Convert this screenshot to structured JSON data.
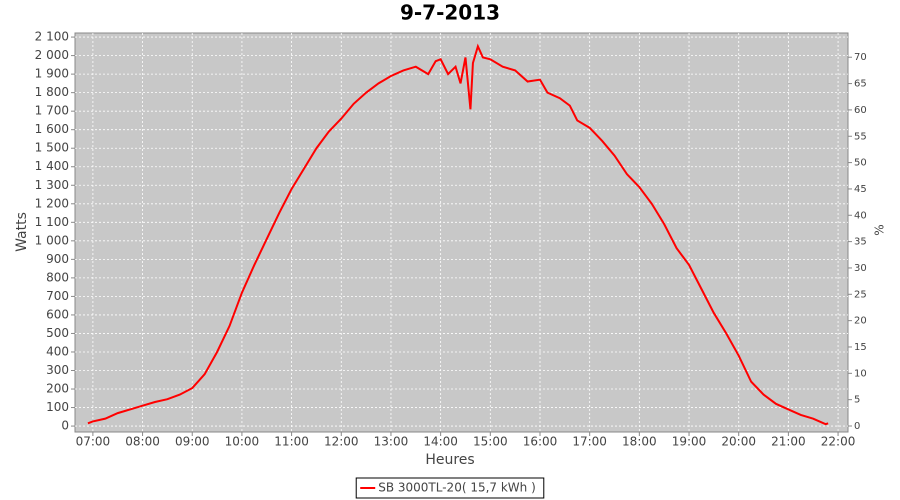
{
  "chart_data": {
    "type": "line",
    "title": "9-7-2013",
    "x_label": "Heures",
    "y_label": "Watts",
    "y2_label": "%",
    "x": [
      6.9,
      7.0,
      7.25,
      7.5,
      7.75,
      8.0,
      8.25,
      8.5,
      8.75,
      9.0,
      9.25,
      9.5,
      9.75,
      10.0,
      10.25,
      10.5,
      10.75,
      11.0,
      11.25,
      11.5,
      11.75,
      12.0,
      12.25,
      12.5,
      12.75,
      13.0,
      13.25,
      13.5,
      13.75,
      13.9,
      14.0,
      14.15,
      14.3,
      14.4,
      14.5,
      14.6,
      14.65,
      14.75,
      14.85,
      15.0,
      15.25,
      15.5,
      15.75,
      16.0,
      16.15,
      16.4,
      16.6,
      16.75,
      17.0,
      17.25,
      17.5,
      17.75,
      18.0,
      18.25,
      18.5,
      18.75,
      19.0,
      19.25,
      19.5,
      19.75,
      20.0,
      20.25,
      20.5,
      20.75,
      21.0,
      21.25,
      21.5,
      21.75,
      21.8
    ],
    "series": [
      {
        "name": "SB 3000TL-20( 15,7 kWh )",
        "color": "#ff0000",
        "values": [
          15,
          25,
          40,
          70,
          90,
          110,
          130,
          145,
          170,
          205,
          280,
          400,
          540,
          720,
          870,
          1010,
          1150,
          1280,
          1390,
          1500,
          1590,
          1660,
          1740,
          1800,
          1850,
          1890,
          1920,
          1940,
          1900,
          1970,
          1980,
          1900,
          1940,
          1850,
          1990,
          1710,
          1960,
          2050,
          1990,
          1980,
          1940,
          1920,
          1860,
          1870,
          1800,
          1770,
          1730,
          1650,
          1610,
          1540,
          1460,
          1360,
          1290,
          1200,
          1090,
          960,
          870,
          740,
          610,
          500,
          380,
          240,
          170,
          120,
          90,
          60,
          40,
          10,
          15
        ]
      }
    ],
    "xlim": [
      6.64,
      22.2
    ],
    "xticks": [
      {
        "value": 7,
        "label": "07:00"
      },
      {
        "value": 8,
        "label": "08:00"
      },
      {
        "value": 9,
        "label": "09:00"
      },
      {
        "value": 10,
        "label": "10:00"
      },
      {
        "value": 11,
        "label": "11:00"
      },
      {
        "value": 12,
        "label": "12:00"
      },
      {
        "value": 13,
        "label": "13:00"
      },
      {
        "value": 14,
        "label": "14:00"
      },
      {
        "value": 15,
        "label": "15:00"
      },
      {
        "value": 16,
        "label": "16:00"
      },
      {
        "value": 17,
        "label": "17:00"
      },
      {
        "value": 18,
        "label": "18:00"
      },
      {
        "value": 19,
        "label": "19:00"
      },
      {
        "value": 20,
        "label": "20:00"
      },
      {
        "value": 21,
        "label": "21:00"
      },
      {
        "value": 22,
        "label": "22:00"
      }
    ],
    "ylim": [
      -32,
      2122
    ],
    "yticks": [
      0,
      100,
      200,
      300,
      400,
      500,
      600,
      700,
      800,
      900,
      {
        "value": 1000,
        "label": "1 000"
      },
      {
        "value": 1100,
        "label": "1 100"
      },
      {
        "value": 1200,
        "label": "1 200"
      },
      {
        "value": 1300,
        "label": "1 300"
      },
      {
        "value": 1400,
        "label": "1 400"
      },
      {
        "value": 1500,
        "label": "1 500"
      },
      {
        "value": 1600,
        "label": "1 600"
      },
      {
        "value": 1700,
        "label": "1 700"
      },
      {
        "value": 1800,
        "label": "1 800"
      },
      {
        "value": 1900,
        "label": "1 900"
      },
      {
        "value": 2000,
        "label": "2 000"
      },
      {
        "value": 2100,
        "label": "2 100"
      }
    ],
    "y2lim": [
      -1.14,
      74.6
    ],
    "y2ticks": [
      0,
      5,
      10,
      15,
      20,
      25,
      30,
      35,
      40,
      45,
      50,
      55,
      60,
      65,
      70
    ],
    "grid": true,
    "plot_background": "#c8c8c8",
    "legend": "bottom"
  }
}
